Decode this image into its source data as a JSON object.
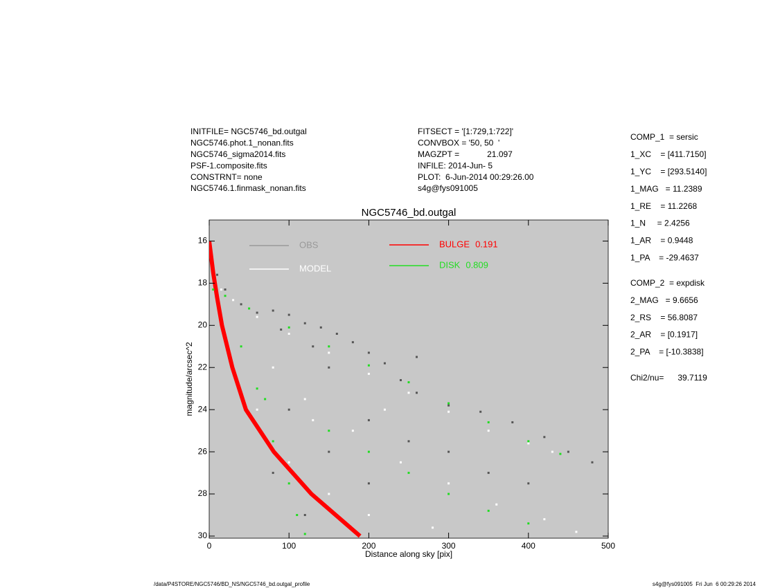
{
  "header": {
    "left": [
      "INITFILE= NGC5746_bd.outgal",
      "NGC5746.phot.1_nonan.fits",
      "NGC5746_sigma2014.fits",
      "PSF-1.composite.fits",
      "CONSTRNT= none",
      "NGC5746.1.finmask_nonan.fits"
    ],
    "middle": [
      "FITSECT = '[1:729,1:722]'",
      "CONVBOX = '50, 50  '",
      "MAGZPT =            21.097",
      "INFILE: 2014-Jun- 5",
      "PLOT:  6-Jun-2014 00:29:26.00",
      "s4g@fys091005"
    ]
  },
  "params": {
    "comp1": [
      "COMP_1  = sersic",
      "1_XC    = [411.7150]",
      "1_YC    = [293.5140]",
      "1_MAG   = 11.2389",
      "1_RE    = 11.2268",
      "1_N     = 2.4256",
      "1_AR    = 0.9448",
      "1_PA    = -29.4637"
    ],
    "comp2": [
      "COMP_2  = expdisk",
      "2_MAG   = 9.6656",
      "2_RS    = 56.8087",
      "2_AR    = [0.1917]",
      "2_PA    = [-10.3838]"
    ],
    "chi2": "Chi2/nu=      39.7119"
  },
  "footer": {
    "left": "/data/P4STORE/NGC5746/BD_NS/NGC5746_bd.outgal_profile",
    "right": "s4g@fys091005  Fri Jun  6 00:29:26 2014"
  },
  "chart_data": {
    "type": "scatter",
    "title": "NGC5746_bd.outgal",
    "x_label": "Distance along sky [pix]",
    "y_label": "magnitude/arcsec^2",
    "xlim": [
      0,
      500
    ],
    "ylim": [
      15,
      30.1
    ],
    "y_reversed": true,
    "xticks": [
      0,
      100,
      200,
      300,
      400,
      500
    ],
    "yticks": [
      16,
      18,
      20,
      22,
      24,
      26,
      28,
      30
    ],
    "background": "#c8c8c8",
    "series": [
      {
        "name": "OBS",
        "color": "#555555",
        "legend_color": "#999999",
        "type": "scatter",
        "x": [
          10,
          20,
          40,
          60,
          80,
          100,
          120,
          140,
          160,
          180,
          200,
          220,
          240,
          260,
          300,
          340,
          380,
          420,
          450,
          480,
          150,
          200,
          250,
          300,
          350,
          400,
          100,
          150,
          200,
          80,
          120,
          260,
          90,
          130
        ],
        "values": [
          17.6,
          18.3,
          19.0,
          19.4,
          19.3,
          19.5,
          19.9,
          20.1,
          20.4,
          20.8,
          21.3,
          21.8,
          22.6,
          23.2,
          23.8,
          24.1,
          24.6,
          25.3,
          26.0,
          26.5,
          22.0,
          24.5,
          25.5,
          26.0,
          27.0,
          27.5,
          24.0,
          26.0,
          27.5,
          27.0,
          29.0,
          21.5,
          20.2,
          21.0
        ]
      },
      {
        "name": "MODEL",
        "color": "#ffffff",
        "legend_color": "#ffffff",
        "type": "scatter",
        "x": [
          5,
          15,
          30,
          60,
          100,
          150,
          200,
          250,
          300,
          350,
          400,
          430,
          80,
          120,
          180,
          240,
          300,
          360,
          420,
          460,
          60,
          100,
          150,
          200,
          280,
          130,
          220
        ],
        "values": [
          17.3,
          18.3,
          18.8,
          19.6,
          20.4,
          21.3,
          22.3,
          23.2,
          24.1,
          25.0,
          25.6,
          26.0,
          22.0,
          23.5,
          25.0,
          26.5,
          27.5,
          28.5,
          29.2,
          29.8,
          24.0,
          26.5,
          28.0,
          29.0,
          29.6,
          24.5,
          24.0
        ]
      },
      {
        "name": "BULGE",
        "fraction": 0.191,
        "color": "#ff0000",
        "legend_color": "#ff0000",
        "type": "line",
        "x": [
          0,
          5,
          10,
          16,
          29,
          46,
          81,
          128,
          189
        ],
        "values": [
          16,
          17.5,
          18.7,
          20,
          22,
          24,
          26,
          28,
          30
        ]
      },
      {
        "name": "DISK",
        "fraction": 0.809,
        "color": "#22dd22",
        "legend_color": "#22dd22",
        "type": "scatter",
        "x": [
          5,
          20,
          50,
          100,
          150,
          200,
          250,
          300,
          350,
          400,
          440,
          40,
          60,
          80,
          100,
          110,
          120,
          70,
          150,
          200,
          250,
          300,
          350,
          400
        ],
        "values": [
          18.3,
          18.6,
          19.2,
          20.1,
          21.0,
          21.9,
          22.7,
          23.7,
          24.6,
          25.5,
          26.1,
          21.0,
          23.0,
          25.5,
          27.5,
          29.0,
          29.9,
          23.5,
          25.0,
          26.0,
          27.0,
          28.0,
          28.8,
          29.4
        ]
      }
    ]
  }
}
